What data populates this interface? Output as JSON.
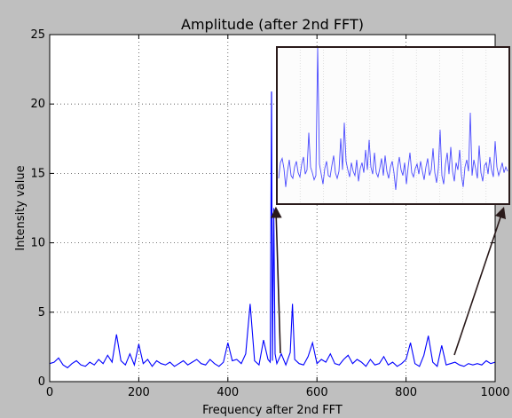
{
  "chart_data": {
    "type": "line",
    "title": "Amplitude (after 2nd FFT)",
    "xlabel": "Frequency after 2nd FFT",
    "ylabel": "Intensity value",
    "xlim": [
      0,
      1000
    ],
    "ylim": [
      0,
      25
    ],
    "x_ticks": [
      0,
      200,
      400,
      600,
      800,
      1000
    ],
    "y_ticks": [
      0,
      5,
      10,
      15,
      20,
      25
    ],
    "grid": true,
    "line_color": "#0000ff",
    "series": [
      {
        "x": [
          0,
          10,
          20,
          30,
          40,
          50,
          60,
          70,
          80,
          90,
          100,
          110,
          120,
          130,
          140,
          150,
          160,
          170,
          180,
          190,
          200,
          210,
          220,
          230,
          240,
          250,
          260,
          270,
          280,
          290,
          300,
          310,
          320,
          330,
          340,
          350,
          360,
          370,
          380,
          390,
          400,
          410,
          420,
          430,
          440,
          450,
          460,
          470,
          480,
          490,
          495,
          498,
          500,
          503,
          506,
          510,
          520,
          530,
          540,
          545,
          550,
          560,
          570,
          580,
          590,
          600,
          610,
          620,
          630,
          640,
          650,
          660,
          670,
          680,
          690,
          700,
          710,
          720,
          730,
          740,
          750,
          760,
          770,
          780,
          790,
          800,
          810,
          820,
          830,
          840,
          850,
          860,
          870,
          880,
          890,
          900,
          910,
          920,
          930,
          940,
          950,
          960,
          970,
          980,
          990,
          1000
        ],
        "values": [
          1.3,
          1.4,
          1.7,
          1.2,
          1.0,
          1.3,
          1.5,
          1.2,
          1.1,
          1.4,
          1.2,
          1.6,
          1.3,
          1.9,
          1.4,
          3.4,
          1.5,
          1.2,
          2.0,
          1.2,
          2.7,
          1.3,
          1.6,
          1.1,
          1.5,
          1.3,
          1.2,
          1.4,
          1.1,
          1.3,
          1.5,
          1.2,
          1.4,
          1.6,
          1.3,
          1.2,
          1.6,
          1.3,
          1.1,
          1.4,
          2.8,
          1.5,
          1.6,
          1.3,
          2.0,
          5.6,
          1.5,
          1.2,
          3.0,
          1.6,
          1.4,
          20.9,
          1.5,
          12.5,
          2.0,
          1.3,
          2.0,
          1.2,
          2.1,
          5.6,
          1.6,
          1.3,
          1.2,
          1.8,
          2.8,
          1.3,
          1.6,
          1.4,
          2.0,
          1.3,
          1.2,
          1.6,
          1.9,
          1.3,
          1.6,
          1.4,
          1.1,
          1.6,
          1.2,
          1.3,
          1.8,
          1.2,
          1.4,
          1.1,
          1.3,
          1.6,
          2.8,
          1.3,
          1.1,
          1.9,
          3.3,
          1.4,
          1.1,
          2.6,
          1.2,
          1.3,
          1.4,
          1.2,
          1.1,
          1.3,
          1.2,
          1.3,
          1.2,
          1.5,
          1.3,
          1.4
        ]
      }
    ]
  },
  "inset": {
    "values": [
      14.8,
      15.9,
      16.2,
      15.5,
      14.2,
      15.3,
      16.1,
      15.0,
      14.8,
      15.6,
      16.0,
      15.2,
      14.9,
      15.8,
      16.3,
      15.1,
      15.4,
      18.0,
      15.6,
      15.2,
      14.7,
      15.0,
      24.0,
      15.8,
      15.1,
      14.4,
      15.5,
      16.0,
      15.0,
      14.9,
      15.7,
      16.4,
      15.2,
      14.8,
      15.3,
      17.6,
      15.4,
      18.7,
      16.0,
      15.4,
      14.9,
      15.9,
      15.3,
      15.0,
      16.1,
      14.6,
      15.5,
      15.9,
      15.2,
      16.8,
      15.4,
      17.5,
      15.6,
      15.1,
      16.6,
      15.2,
      14.9,
      15.5,
      16.2,
      15.0,
      16.4,
      15.3,
      14.8,
      15.6,
      16.0,
      15.2,
      14.0,
      15.5,
      16.3,
      15.4,
      15.0,
      15.9,
      14.4,
      15.6,
      16.6,
      15.2,
      14.9,
      15.5,
      15.8,
      15.1,
      16.0,
      15.3,
      14.7,
      15.6,
      16.2,
      15.0,
      15.4,
      16.9,
      15.2,
      14.5,
      15.5,
      18.2,
      15.0,
      14.4,
      15.8,
      16.6,
      15.1,
      17.0,
      15.3,
      14.6,
      15.9,
      15.4,
      16.8,
      15.0,
      14.2,
      15.6,
      16.1,
      15.3,
      19.4,
      15.0,
      16.1,
      15.5,
      14.8,
      17.1,
      15.2,
      14.6,
      15.7,
      15.9,
      15.1,
      16.3,
      15.4,
      14.9,
      17.4,
      15.6,
      15.0,
      15.4,
      15.9,
      15.2,
      15.6,
      15.3
    ],
    "ylim": [
      13,
      24
    ]
  }
}
